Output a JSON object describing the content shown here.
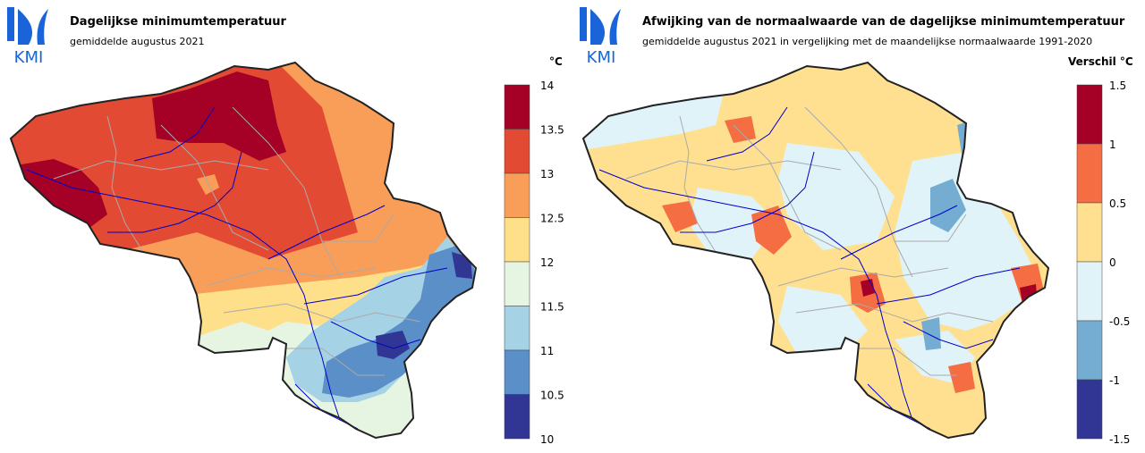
{
  "colors": {
    "t14": "#a50026",
    "t135": "#e34a33",
    "t13": "#f99e59",
    "t125": "#fee08b",
    "t12": "#e6f5e1",
    "t115": "#a6d2e6",
    "t11": "#5b8fc8",
    "t105": "#313695",
    "a15": "#a50026",
    "a1": "#f46d43",
    "a05": "#fee090",
    "a0": "#e0f3f8",
    "am05": "#74add1",
    "am1": "#313695",
    "border": "#222222",
    "river": "#0000cc",
    "province": "#aaaaaa",
    "logo": "#1a63d8"
  },
  "left": {
    "logo_text": "KMI",
    "title": "Dagelijkse minimumtemperatuur",
    "subtitle": "gemiddelde augustus 2021",
    "unit": "°C",
    "legend_ticks": [
      "14",
      "13.5",
      "13",
      "12.5",
      "12",
      "11.5",
      "11",
      "10.5",
      "10"
    ]
  },
  "right": {
    "logo_text": "KMI",
    "title": "Afwijking van de normaalwaarde van de dagelijkse minimumtemperatuur",
    "subtitle": "gemiddelde augustus 2021 in vergelijking met de maandelijkse normaalwaarde 1991-2020",
    "unit": "Verschil °C",
    "legend_ticks": [
      "1.5",
      "1",
      "0.5",
      "0",
      "-0.5",
      "-1",
      "-1.5"
    ]
  }
}
